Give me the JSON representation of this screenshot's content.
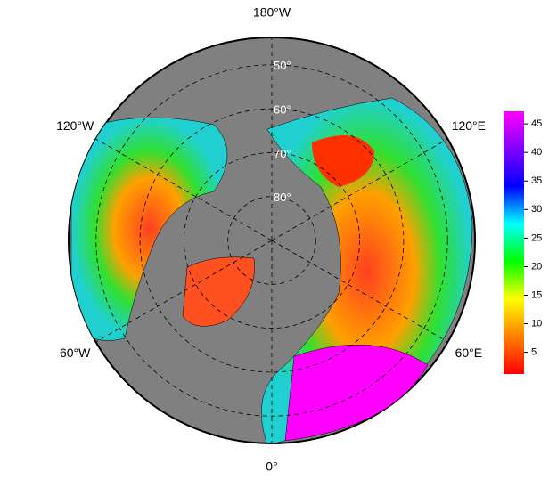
{
  "map": {
    "projection": "north polar stereographic",
    "longitude_labels": [
      {
        "value": -180,
        "label": "180°W"
      },
      {
        "value": 120,
        "label": "120°E"
      },
      {
        "value": 60,
        "label": "60°E"
      },
      {
        "value": 0,
        "label": "0°"
      },
      {
        "value": -60,
        "label": "60°W"
      },
      {
        "value": -120,
        "label": "120°W"
      }
    ],
    "latitude_labels": [
      {
        "value": 50,
        "label": "50°"
      },
      {
        "value": 60,
        "label": "60°"
      },
      {
        "value": 70,
        "label": "70°"
      },
      {
        "value": 80,
        "label": "80°"
      }
    ],
    "colorbar": {
      "lim": [
        1.2,
        47.2
      ],
      "ticks": [
        5,
        10,
        15,
        20,
        25,
        30,
        35,
        40,
        45
      ],
      "colors": [
        "#ff0000",
        "#ff8000",
        "#ffff00",
        "#00ff00",
        "#00ffff",
        "#0000ff",
        "#8000ff",
        "#ff00ff"
      ]
    }
  }
}
